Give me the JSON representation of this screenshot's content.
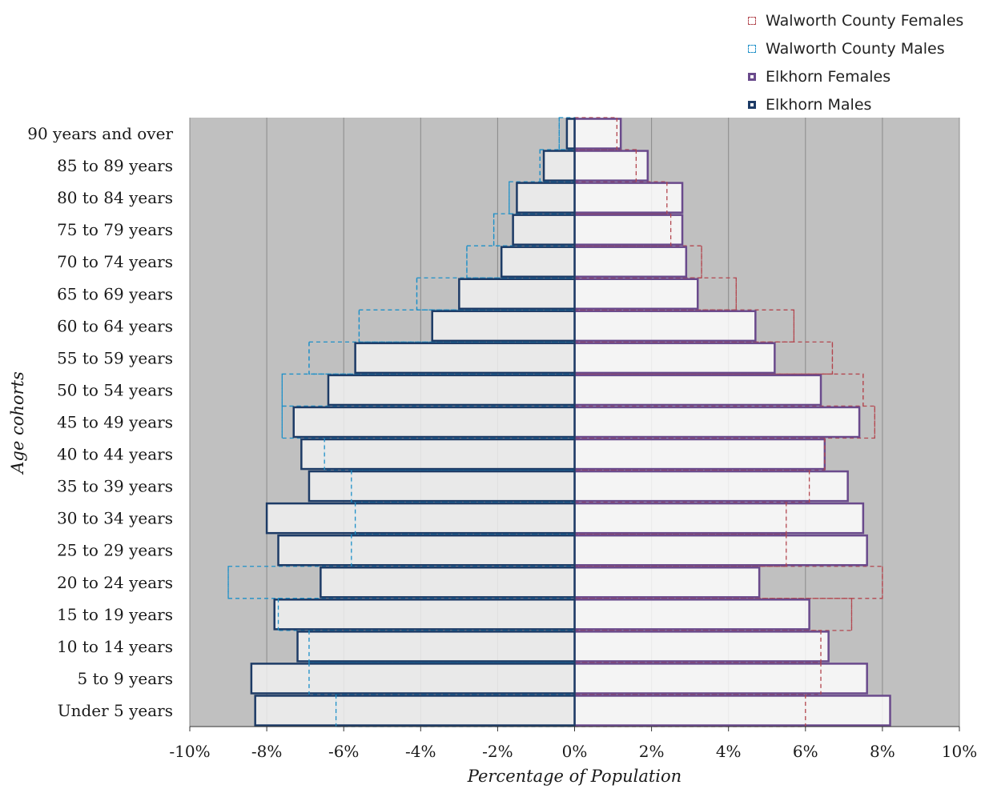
{
  "chart_data": {
    "type": "bar",
    "orientation": "horizontal",
    "xlabel": "Percentage of Population",
    "ylabel": "Age cohorts",
    "xlim": [
      -10,
      10
    ],
    "x_ticks": [
      "-10%",
      "-8%",
      "-6%",
      "-4%",
      "-2%",
      "0%",
      "2%",
      "4%",
      "6%",
      "8%",
      "10%"
    ],
    "x_tick_values": [
      -10,
      -8,
      -6,
      -4,
      -2,
      0,
      2,
      4,
      6,
      8,
      10
    ],
    "grid": "vertical",
    "legend_position": "top-right",
    "categories": [
      "90 years and over",
      "85 to 89 years",
      "80 to 84 years",
      "75 to 79 years",
      "70 to 74 years",
      "65 to 69 years",
      "60 to 64 years",
      "55 to 59 years",
      "50 to 54 years",
      "45 to 49 years",
      "40 to 44 years",
      "35 to 39 years",
      "30 to 34 years",
      "25 to 29 years",
      "20 to 24 years",
      "15 to 19 years",
      "10 to 14 years",
      "5 to 9 years",
      "Under 5 years"
    ],
    "series": [
      {
        "name": "Walworth County Females",
        "style": "dashed",
        "color": "#b3474f",
        "values": [
          1.1,
          1.6,
          2.4,
          2.5,
          3.3,
          4.2,
          5.7,
          6.7,
          7.5,
          7.8,
          6.5,
          6.1,
          5.5,
          5.5,
          8.0,
          7.2,
          6.4,
          6.4,
          6.0
        ]
      },
      {
        "name": "Walworth County Males",
        "style": "dashed",
        "color": "#1e90c8",
        "values": [
          -0.4,
          -0.9,
          -1.7,
          -2.1,
          -2.8,
          -4.1,
          -5.6,
          -6.9,
          -7.6,
          -7.6,
          -6.5,
          -5.8,
          -5.7,
          -5.8,
          -9.0,
          -7.7,
          -6.9,
          -6.9,
          -6.2
        ]
      },
      {
        "name": "Elkhorn Females",
        "style": "solid",
        "color": "#6a4a8c",
        "values": [
          1.2,
          1.9,
          2.8,
          2.8,
          2.9,
          3.2,
          4.7,
          5.2,
          6.4,
          7.4,
          6.5,
          7.1,
          7.5,
          7.6,
          4.8,
          6.1,
          6.6,
          7.6,
          8.2
        ]
      },
      {
        "name": "Elkhorn Males",
        "style": "solid",
        "color": "#1d3b66",
        "values": [
          -0.2,
          -0.8,
          -1.5,
          -1.6,
          -1.9,
          -3.0,
          -3.7,
          -5.7,
          -6.4,
          -7.3,
          -7.1,
          -6.9,
          -8.0,
          -7.7,
          -6.6,
          -7.8,
          -7.2,
          -8.4,
          -8.3
        ]
      }
    ]
  }
}
